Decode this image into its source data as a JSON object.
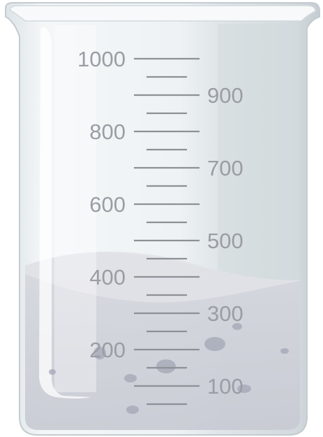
{
  "beaker": {
    "unit": "",
    "scale_labels_left": [
      "1000",
      "800",
      "600",
      "400",
      "200"
    ],
    "scale_labels_right": [
      "900",
      "700",
      "500",
      "300",
      "100"
    ],
    "scale_max": 1000,
    "liquid_level": 400
  },
  "colors": {
    "glass": "#e9eef1",
    "glass_shade": "#c9d0d5",
    "liquid": "#cbcdd6",
    "tick": "#8d9196",
    "label": "#9a9da3",
    "bubble": "#9ea2b0"
  }
}
